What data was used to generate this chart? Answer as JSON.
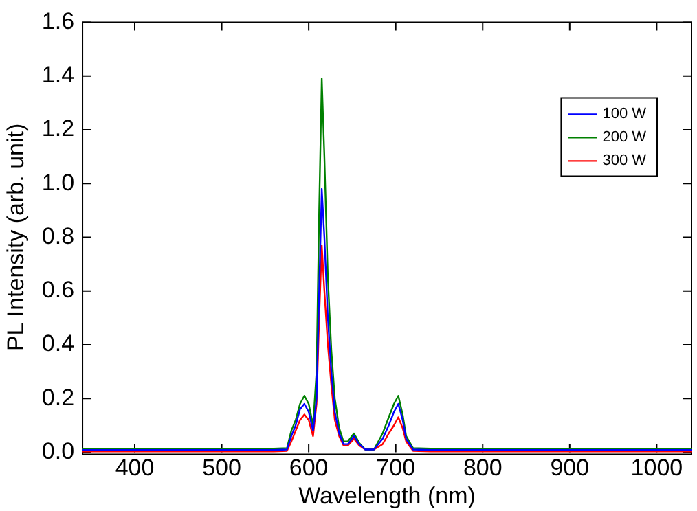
{
  "chart_data": {
    "type": "line",
    "xlabel": "Wavelength (nm)",
    "ylabel": "PL Intensity (arb. unit)",
    "x": [
      340,
      500,
      560,
      575,
      580,
      585,
      590,
      595,
      600,
      605,
      609,
      612,
      615,
      618,
      622,
      626,
      630,
      635,
      640,
      645,
      652,
      658,
      665,
      675,
      685,
      692,
      698,
      703,
      708,
      712,
      720,
      740,
      800,
      900,
      1040
    ],
    "series": [
      {
        "name": "100 W",
        "color": "#0000ff",
        "values": [
          0.008,
          0.008,
          0.008,
          0.01,
          0.06,
          0.1,
          0.16,
          0.18,
          0.15,
          0.08,
          0.2,
          0.6,
          0.98,
          0.8,
          0.5,
          0.3,
          0.15,
          0.07,
          0.03,
          0.03,
          0.06,
          0.03,
          0.01,
          0.01,
          0.05,
          0.1,
          0.15,
          0.18,
          0.12,
          0.05,
          0.01,
          0.008,
          0.008,
          0.008,
          0.008
        ]
      },
      {
        "name": "200 W",
        "color": "#008000",
        "values": [
          0.013,
          0.013,
          0.013,
          0.015,
          0.08,
          0.12,
          0.18,
          0.21,
          0.18,
          0.1,
          0.3,
          0.9,
          1.39,
          1.1,
          0.65,
          0.38,
          0.2,
          0.09,
          0.04,
          0.04,
          0.07,
          0.035,
          0.01,
          0.01,
          0.07,
          0.13,
          0.18,
          0.21,
          0.14,
          0.06,
          0.015,
          0.013,
          0.013,
          0.013,
          0.013
        ]
      },
      {
        "name": "300 W",
        "color": "#ff0000",
        "values": [
          0.003,
          0.003,
          0.003,
          0.005,
          0.04,
          0.08,
          0.12,
          0.14,
          0.12,
          0.06,
          0.18,
          0.5,
          0.77,
          0.6,
          0.4,
          0.25,
          0.12,
          0.06,
          0.025,
          0.025,
          0.05,
          0.025,
          0.01,
          0.01,
          0.03,
          0.07,
          0.1,
          0.13,
          0.09,
          0.04,
          0.005,
          0.003,
          0.003,
          0.003,
          0.003
        ]
      }
    ],
    "xlim": [
      340,
      1040
    ],
    "xticks": [
      400,
      500,
      600,
      700,
      800,
      900,
      1000
    ],
    "ylim": [
      0,
      1.6
    ],
    "yticks": [
      {
        "value": 0,
        "label": "0.0"
      },
      {
        "value": 0.2,
        "label": "0.2"
      },
      {
        "value": 0.4,
        "label": "0.4"
      },
      {
        "value": 0.6,
        "label": "0.6"
      },
      {
        "value": 0.8,
        "label": "0.8"
      },
      {
        "value": 1,
        "label": "1.0"
      },
      {
        "value": 1.2,
        "label": "1.2"
      },
      {
        "value": 1.4,
        "label": "1.4"
      },
      {
        "value": 1.6,
        "label": "1.6"
      }
    ],
    "legend": "top right",
    "grid": false,
    "marker": "none",
    "line_style": "solid"
  }
}
